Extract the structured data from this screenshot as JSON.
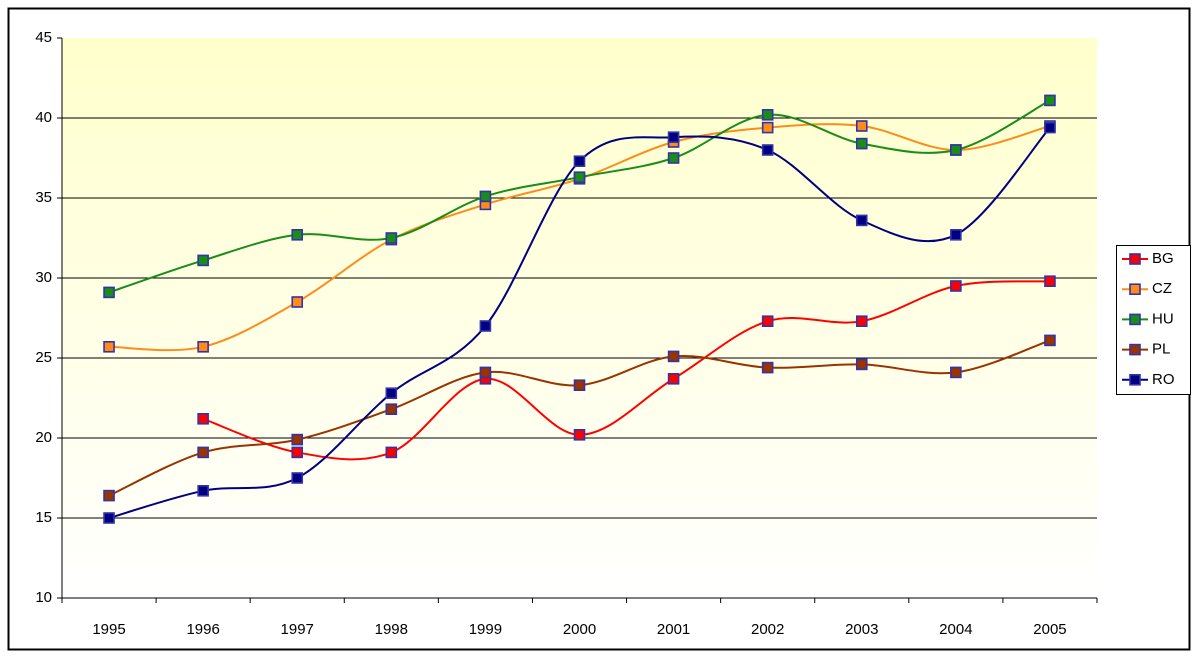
{
  "chart_data": {
    "type": "line",
    "categories": [
      "1995",
      "1996",
      "1997",
      "1998",
      "1999",
      "2000",
      "2001",
      "2002",
      "2003",
      "2004",
      "2005"
    ],
    "series": [
      {
        "name": "BG",
        "color": "#ff0000",
        "values": [
          null,
          21.2,
          19.1,
          19.1,
          23.7,
          20.2,
          23.7,
          27.3,
          27.3,
          29.5,
          29.8
        ]
      },
      {
        "name": "CZ",
        "color": "#ff8c1a",
        "values": [
          25.7,
          25.7,
          28.5,
          32.4,
          34.6,
          36.2,
          38.5,
          39.4,
          39.5,
          38.0,
          39.5
        ]
      },
      {
        "name": "HU",
        "color": "#1a8c1a",
        "values": [
          29.1,
          31.1,
          32.7,
          32.5,
          35.1,
          36.3,
          37.5,
          40.2,
          38.4,
          38.0,
          41.1
        ]
      },
      {
        "name": "PL",
        "color": "#993300",
        "values": [
          16.4,
          19.1,
          19.9,
          21.8,
          24.1,
          23.3,
          25.1,
          24.4,
          24.6,
          24.1,
          26.1
        ]
      },
      {
        "name": "RO",
        "color": "#000080",
        "values": [
          15.0,
          16.7,
          17.5,
          22.8,
          27.0,
          37.3,
          38.8,
          38.0,
          33.6,
          32.7,
          39.4
        ]
      }
    ],
    "ylim": [
      10,
      45
    ],
    "yticks": [
      10,
      15,
      20,
      25,
      30,
      35,
      40,
      45
    ],
    "grid": true,
    "legend": "right"
  }
}
